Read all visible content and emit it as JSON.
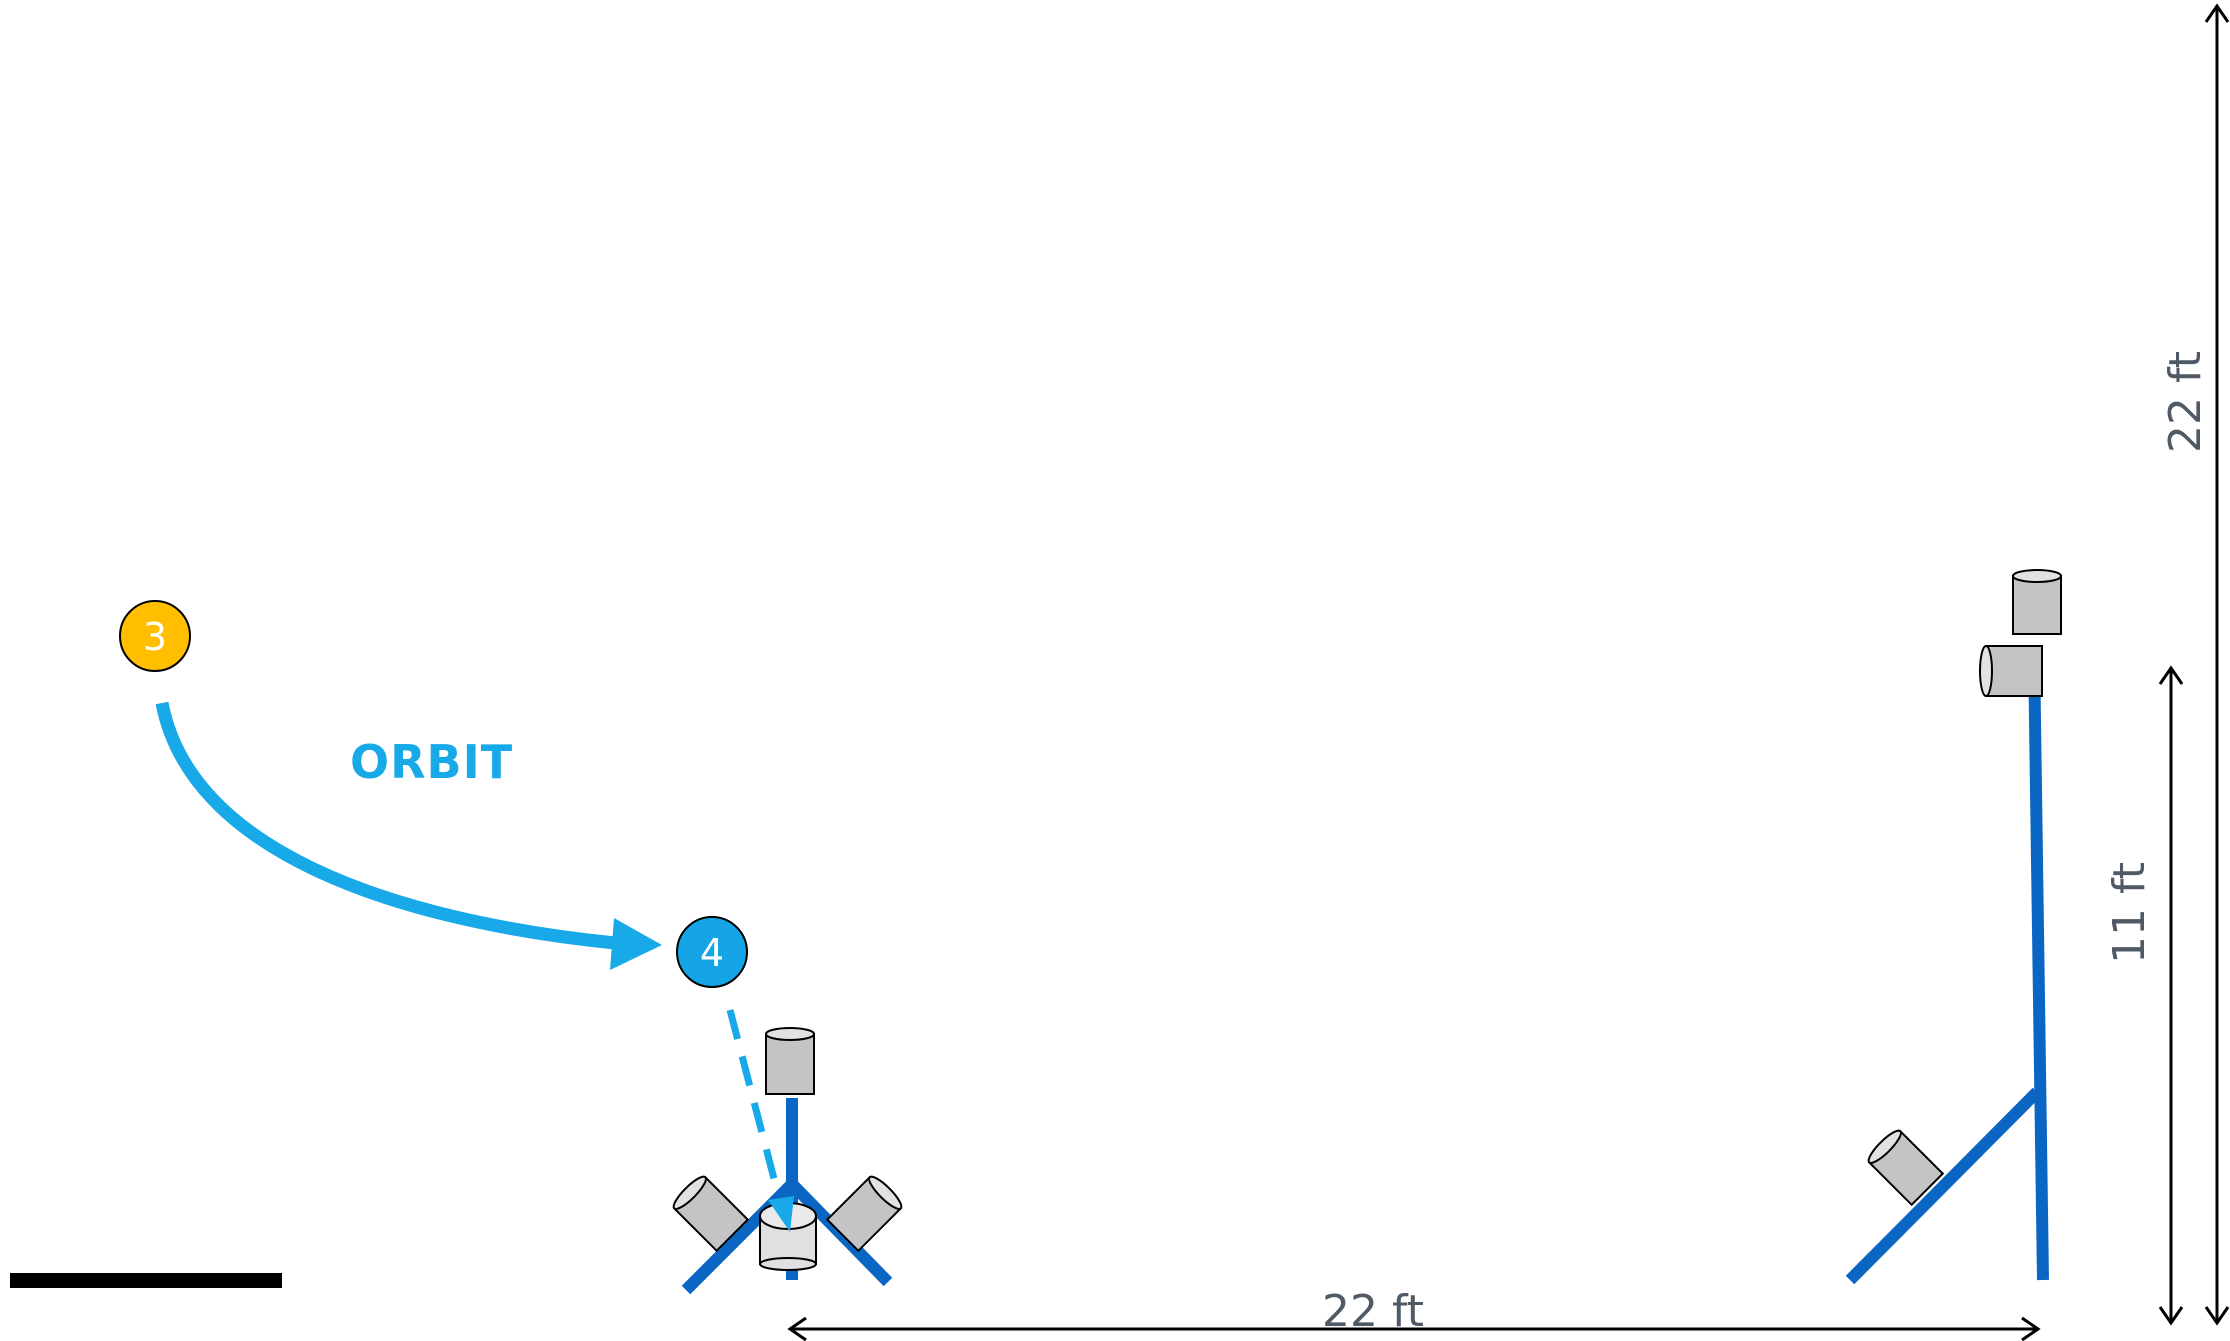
{
  "colors": {
    "handler_3": "#ffbf00",
    "handler_4": "#15a5e6",
    "path": "#17a9e8",
    "obstacle": "#0a66c2",
    "pole": "#c4c4c4",
    "pole_light": "#e0e0e0",
    "dimension": "#000000",
    "dimension_text": "#505a66",
    "scale_bar": "#000000"
  },
  "markers": [
    {
      "id": "3",
      "label": "3",
      "color": "#ffbf00"
    },
    {
      "id": "4",
      "label": "4",
      "color": "#15a5e6"
    }
  ],
  "path_label": "ORBIT",
  "dimensions": {
    "bottom": "22 ft",
    "right_outer": "22 ft",
    "right_inner": "11 ft"
  }
}
